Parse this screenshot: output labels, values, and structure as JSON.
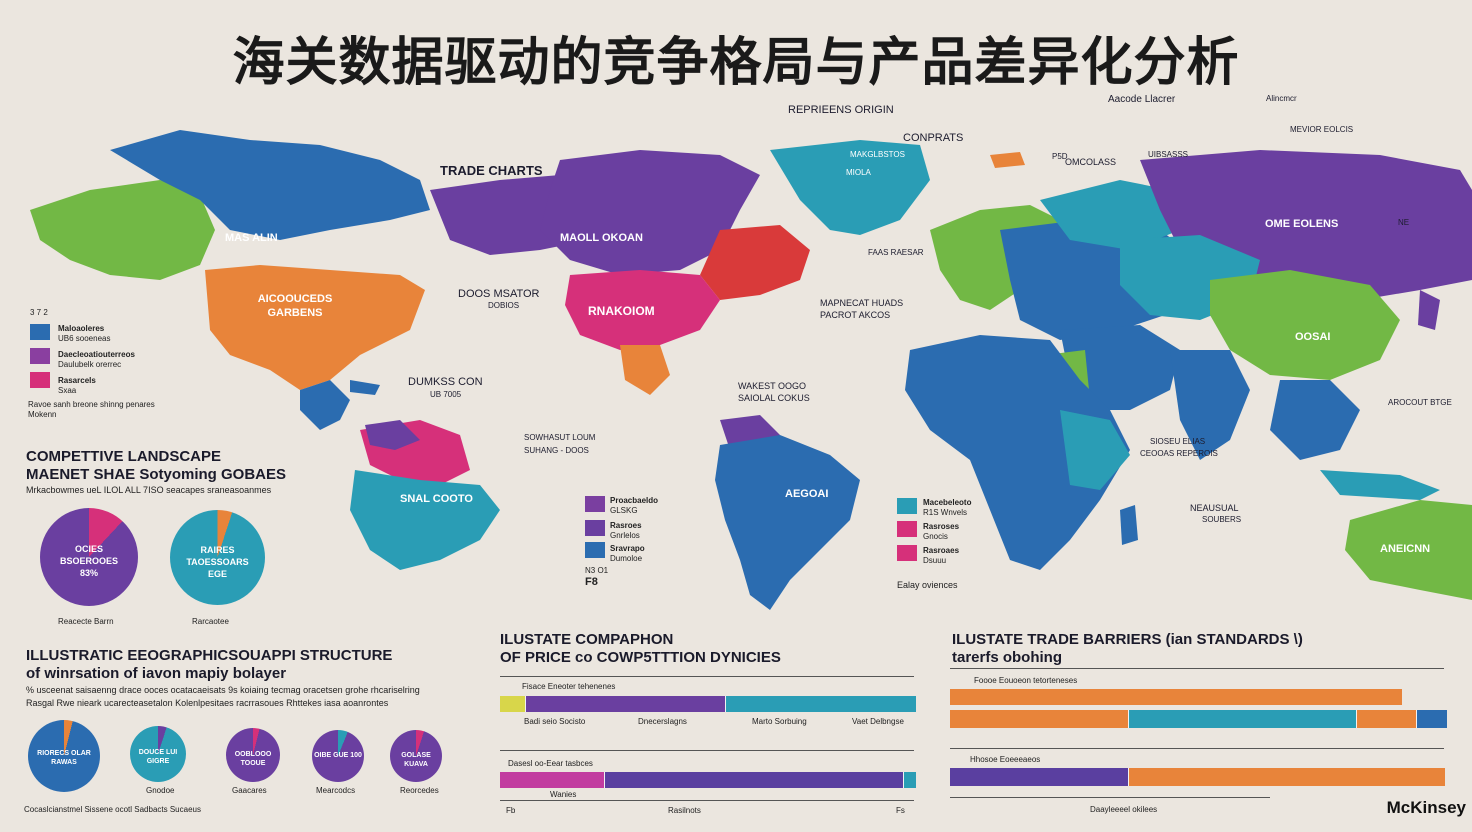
{
  "title": "海关数据驱动的竞争格局与产品差异化分析",
  "colors": {
    "blue": "#2b6cb0",
    "teal": "#2a9db5",
    "purple": "#6a3fa0",
    "magenta": "#d6307a",
    "orange": "#e8843a",
    "green": "#72b845",
    "red": "#d93a3a",
    "yellow": "#d8d64a",
    "background": "#ebe6df"
  },
  "map": {
    "labels": {
      "na_green": "MAS ALIN",
      "na_orange": "AICOOUCEDS GARBENS",
      "trade_charts": "TRADE CHARTS",
      "na_purple": "MAOLL OKOAN",
      "na_magenta": "RNAKOIOM",
      "doos": "DOOS MSATOR",
      "doos_sub": "DOBIOS",
      "dums": "DUMKSS CON",
      "dums_sub": "UB 7005",
      "sa_left": "SNAL COOTO",
      "sa_right": "AEGOAI",
      "sowhasut": "SOWHASUT LOUM",
      "sowhasut_sub": "SUHANG - DOOS",
      "repriens": "REPRIEENS ORIGIN",
      "conprats": "CONPRATS",
      "greenland_1": "MAKGLBSTOS",
      "greenland_2": "MIOLA",
      "mapnecat": "MAPNECAT HUADS",
      "mapnecat_sub": "PACROT AKCOS",
      "fas_raesar": "FAAS RAESAR",
      "wakest": "WAKEST OOGO",
      "wakest_sub": "SAIOLAL COKUS",
      "aomedo": "Aacode Llacrer",
      "alincmer": "Alincmcr",
      "mevior": "MEVIOR EOLCIS",
      "omcolass": "OMCOLASS",
      "uibsasss": "UIBSASSS",
      "ome_eolens": "OME EOLENS",
      "oosai": "OOSAI",
      "aroconit": "AROCOUT BTGE",
      "sioseu": "SIOSEU ELIAS",
      "sioseu_sub": "CEOOAS REPEROIS",
      "neausual": "NEAUSUAL",
      "neausual_sub": "SOUBERS",
      "aneicnn": "ANEICNN",
      "pe": "P5D",
      "ne": "NE"
    },
    "legend_left": {
      "items": [
        {
          "label": "Maloaoleres",
          "sub": "UB6 sooeneas",
          "color": "#2b6cb0"
        },
        {
          "label": "Daecleoatiouterreos",
          "sub": "Daulubelk orerrec",
          "color": "#8a3fa0"
        },
        {
          "label": "Rasarcels",
          "sub": "Sxaa",
          "color": "#d6307a"
        }
      ],
      "note": "Ravoe sanh breone shinng penares",
      "note2": "Mokenn",
      "top": "3 7 2"
    },
    "legend_center": {
      "items": [
        {
          "label": "Proacbaeldo",
          "sub": "GLSKG",
          "color": "#7a3fa0"
        },
        {
          "label": "Rasroes",
          "sub": "Gnrlelos",
          "color": "#6a3fa0"
        },
        {
          "label": "Sravrapo",
          "sub": "Dumoloe",
          "color": "#2b6cb0"
        }
      ],
      "note": "F8",
      "note_top": "N3 O1"
    },
    "legend_right": {
      "items": [
        {
          "label": "Macebeleoto",
          "sub": "R1S Wnvels",
          "color": "#2a9db5"
        },
        {
          "label": "Rasroses",
          "sub": "Gnocis",
          "color": "#d6307a"
        },
        {
          "label": "Rasroaes",
          "sub": "Dsuuu",
          "color": "#d6307a"
        }
      ],
      "note": "Ealay oviences"
    }
  },
  "competitive": {
    "title_line1": "COMPETTIVE LANDSCAPE",
    "title_line2": "MAENET SHAE Sotyoming GOBAES",
    "subtitle": "Mrkacbowmes ueL ILOL ALL 7ISO seacapes sraneasoanmes",
    "pies": [
      {
        "text1": "OCIES",
        "text2": "BSOEROOES",
        "text3": "83%",
        "caption": "Reacecte Barrn",
        "main": "#6a3fa0",
        "slice": "#d6307a",
        "slice_pct": 0.12
      },
      {
        "text1": "RAIRES",
        "text2": "TAOESSOARS",
        "text3": "EGE",
        "caption": "Rarcaotee",
        "main": "#2a9db5",
        "slice": "#e8843a",
        "slice_pct": 0.05
      }
    ]
  },
  "geo": {
    "title_line1": "ILLUSTRATIC EEOGRAPHICSOUAPPI STRUCTURE",
    "title_line2": "of winrsation of iavon mapiy bolayer",
    "subtitle_line1": "% usceenat saisaenng drace ooces ocatacaeisats 9s koiaing tecmag oracetsen grohe rhcariselring",
    "subtitle_line2": "Rasgal Rwe nieark ucarecteasetalon Kolenlpesitaes racrrasoues Rhttekes iasa aoanrontes",
    "caption": "Cocaslcianstmel Sissene ocotl Sadbacts Sucaeus",
    "pies": [
      {
        "text": "RIORECS OLAR RAWAS",
        "caption": "",
        "main": "#2b6cb0",
        "slice": "#e8843a",
        "slice_pct": 0.04
      },
      {
        "text": "DOUCE LUI GIGRE",
        "caption": "Gnodoe",
        "main": "#2a9db5",
        "slice": "#6a3fa0",
        "slice_pct": 0.05
      },
      {
        "text": "OOBLOOO TOOUE",
        "caption": "Gaacares",
        "main": "#6a3fa0",
        "slice": "#d6307a",
        "slice_pct": 0.04
      },
      {
        "text": "OIBE GUE 100",
        "caption": "Mearcodcs",
        "main": "#6a3fa0",
        "slice": "#2a9db5",
        "slice_pct": 0.06
      },
      {
        "text": "GOLASE KUAVA",
        "caption": "Reorcedes",
        "main": "#6a3fa0",
        "slice": "#d6307a",
        "slice_pct": 0.05
      }
    ]
  },
  "price": {
    "title_line1": "ILUSTATE COMPAPHON",
    "title_line2": "OF PRICE co COWP5TTTION DYNICIES",
    "bar1_caption": "Fisace Eneoter tehenenes",
    "bar1": [
      {
        "pct": 0.06,
        "color": "#d8d64a"
      },
      {
        "pct": 0.48,
        "color": "#6a3fa0"
      },
      {
        "pct": 0.46,
        "color": "#2a9db5"
      }
    ],
    "bar1_labels": [
      "Badi seio Socisto",
      "Dnecerslagns",
      "Marto Sorbuing",
      "Vaet Delbngse"
    ],
    "bar2_caption": "Dasesl oo-Eear tasbces",
    "bar2": [
      {
        "pct": 0.25,
        "color": "#c23ca0"
      },
      {
        "pct": 0.72,
        "color": "#5a3fa0"
      },
      {
        "pct": 0.03,
        "color": "#2a9db5"
      }
    ],
    "bar2_labels": [
      "Wanies"
    ],
    "axis_labels": [
      "Fb",
      "Rasilnots",
      "Fs"
    ]
  },
  "barriers": {
    "title_line1": "ILUSTATE TRADE BARRIERS (ian STANDARDS \\)",
    "title_line2": "tarerfs obohing",
    "bar1_caption": "Foooe Eouoeon tetorteneses",
    "bar1": [
      {
        "pct": 1.0,
        "color": "#e8843a"
      }
    ],
    "bar2": [
      {
        "pct": 0.36,
        "color": "#e8843a"
      },
      {
        "pct": 0.46,
        "color": "#2a9db5"
      },
      {
        "pct": 0.12,
        "color": "#e8843a"
      },
      {
        "pct": 0.06,
        "color": "#2b6cb0"
      }
    ],
    "bar3_caption": "Hhosoe Eoeeeaeos",
    "bar3": [
      {
        "pct": 0.36,
        "color": "#5a3fa0"
      },
      {
        "pct": 0.64,
        "color": "#e8843a"
      }
    ],
    "axis_label": "Daayleeeel okilees"
  },
  "brand": "McKinsey"
}
